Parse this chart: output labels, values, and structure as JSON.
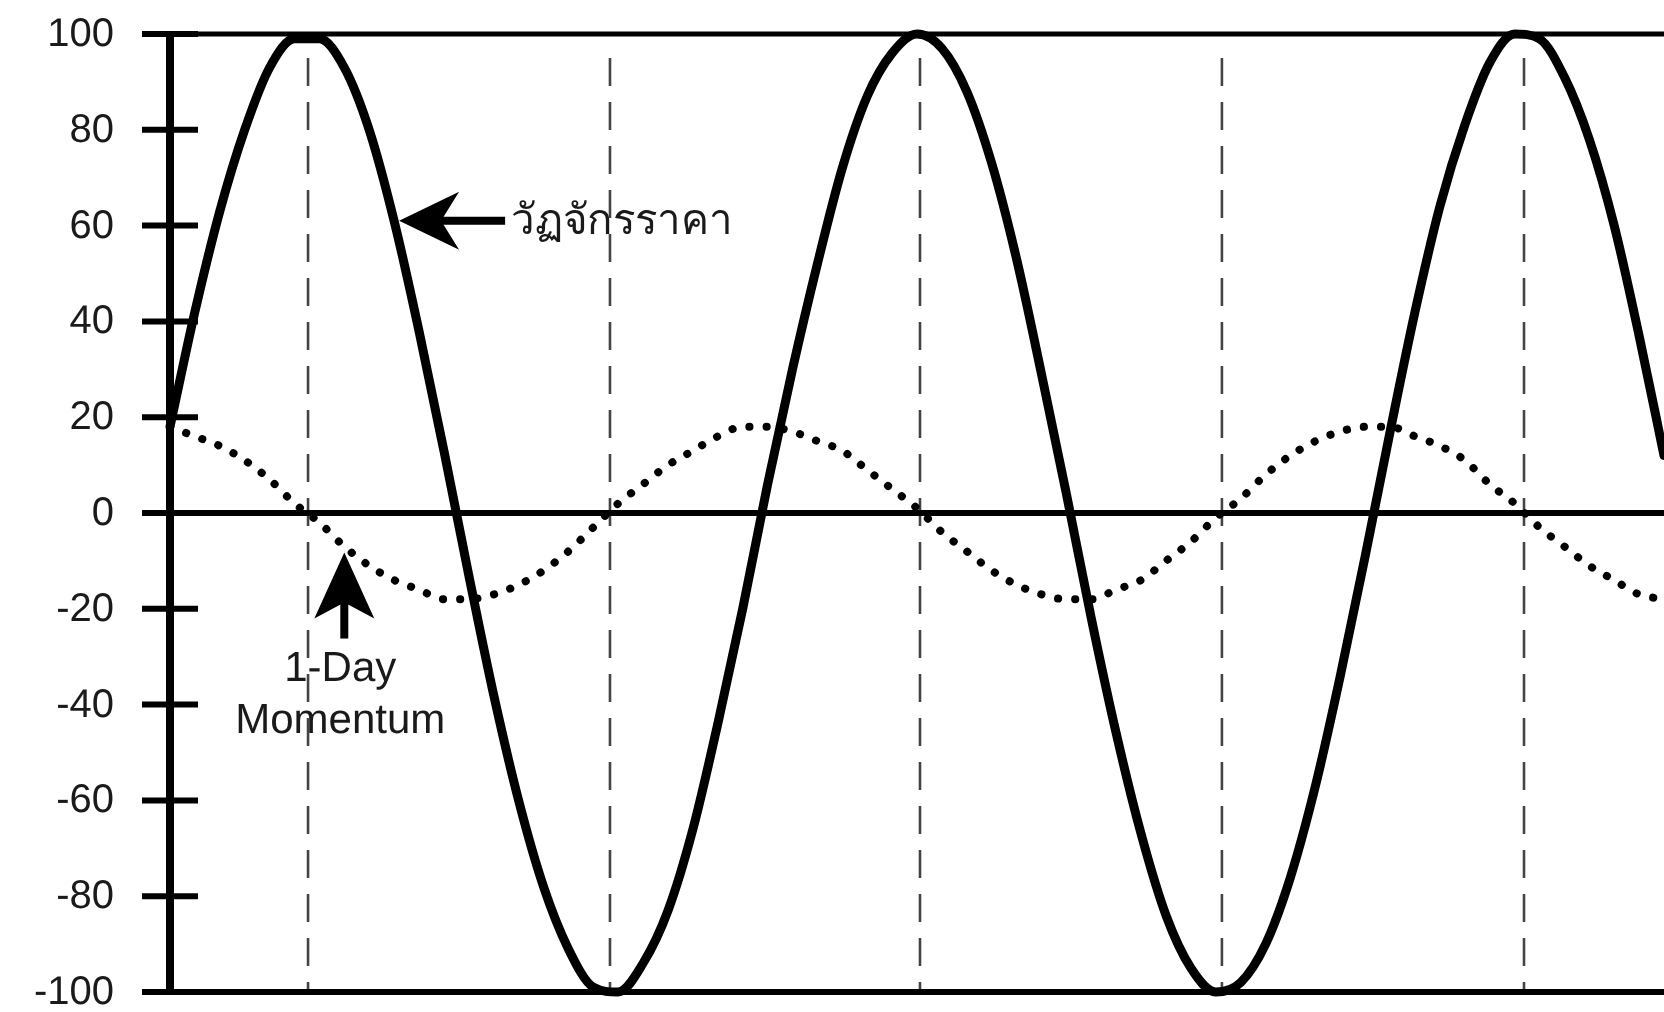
{
  "chart_data": {
    "type": "line",
    "categories": [
      null,
      null,
      null,
      null,
      null,
      null,
      null,
      null,
      null,
      null,
      null,
      null,
      null,
      null,
      null,
      null,
      null,
      null,
      null,
      null,
      null,
      null,
      null,
      null,
      null,
      null,
      null,
      null,
      null,
      null,
      null,
      null,
      null,
      null,
      null,
      null,
      null,
      null,
      null,
      null,
      null,
      null,
      null,
      null,
      null,
      null,
      null,
      null,
      null,
      null,
      null,
      null,
      null,
      null,
      null,
      null,
      null,
      null,
      null,
      null,
      null
    ],
    "series": [
      {
        "name": "วัฏจักรราคา",
        "color": "#000000",
        "line_style": "solid",
        "values": [
          18,
          42,
          63,
          80,
          93,
          99,
          99,
          93,
          80,
          61,
          38,
          13,
          -13,
          -38,
          -60,
          -78,
          -91,
          -99,
          -100,
          -94,
          -83,
          -66,
          -44,
          -20,
          6,
          30,
          52,
          72,
          87,
          96,
          100,
          97,
          88,
          73,
          53,
          29,
          4,
          -22,
          -46,
          -67,
          -84,
          -95,
          -100,
          -98,
          -90,
          -76,
          -57,
          -34,
          -9,
          17,
          42,
          64,
          81,
          94,
          100,
          99,
          91,
          78,
          60,
          37,
          12
        ]
      },
      {
        "name": "1-Day Momentum",
        "color": "#000000",
        "line_style": "dotted",
        "values": [
          18,
          16,
          14,
          11,
          7,
          2,
          -2,
          -7,
          -11,
          -14,
          -16,
          -18,
          -18,
          -17,
          -15,
          -12,
          -8,
          -3,
          2,
          6,
          10,
          13,
          16,
          18,
          18,
          17,
          15,
          13,
          9,
          5,
          1,
          -4,
          -8,
          -12,
          -15,
          -17,
          -18,
          -18,
          -16,
          -14,
          -10,
          -6,
          -1,
          3,
          8,
          12,
          15,
          17,
          18,
          18,
          16,
          14,
          11,
          6,
          2,
          -3,
          -7,
          -11,
          -14,
          -17,
          -18
        ]
      }
    ],
    "ylim": [
      -100,
      100
    ],
    "yticks": [
      -100,
      -80,
      -60,
      -40,
      -20,
      0,
      20,
      40,
      60,
      80,
      100
    ],
    "tick_labels": "y"
  }
}
